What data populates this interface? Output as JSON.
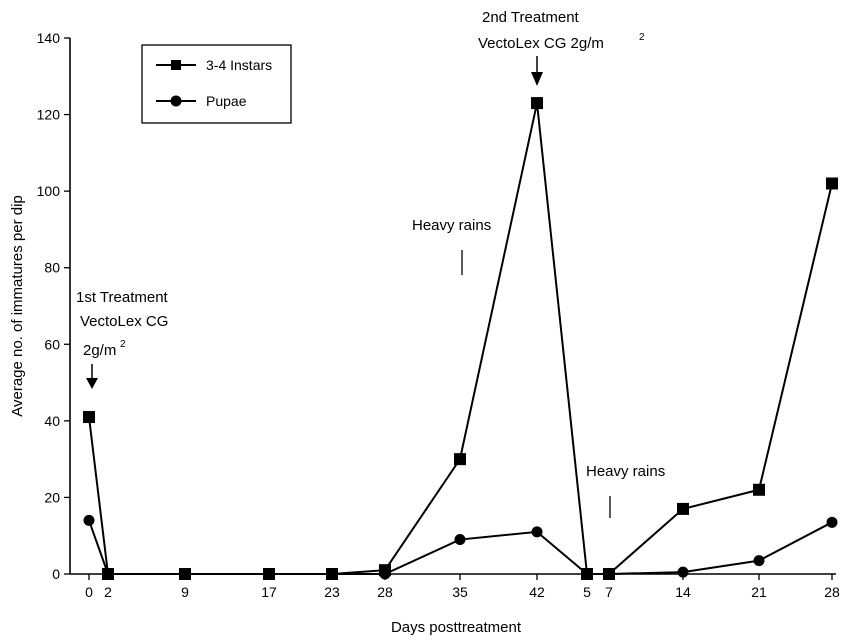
{
  "chart_data": {
    "type": "line",
    "title": "",
    "xlabel": "Days posttreatment",
    "ylabel": "Average no. of immatures per dip",
    "ylim": [
      0,
      140
    ],
    "yticks": [
      "0",
      "20",
      "40",
      "60",
      "80",
      "100",
      "120",
      "140"
    ],
    "x_tick_labels": [
      "0",
      "2",
      "9",
      "17",
      "23",
      "28",
      "35",
      "42",
      "5",
      "7",
      "14",
      "21",
      "28"
    ],
    "grid": false,
    "legend_position": "top-left",
    "series": [
      {
        "name": "3-4 Instars",
        "marker": "square",
        "values": [
          41,
          0,
          0,
          0,
          0,
          1,
          30,
          123,
          0,
          0,
          17,
          22,
          102
        ]
      },
      {
        "name": "Pupae",
        "marker": "circle",
        "values": [
          14,
          0,
          0,
          0,
          0,
          0,
          9,
          11,
          0,
          0,
          0.5,
          3.5,
          13.5
        ]
      }
    ],
    "annotations": {
      "first_treatment": [
        "1st Treatment",
        "VectoLex  CG",
        "2g/m",
        "2"
      ],
      "second_treatment": [
        "2nd Treatment",
        "VectoLex  CG  2g/m",
        "2"
      ],
      "heavy_rains_1": "Heavy rains",
      "heavy_rains_2": "Heavy rains"
    }
  }
}
